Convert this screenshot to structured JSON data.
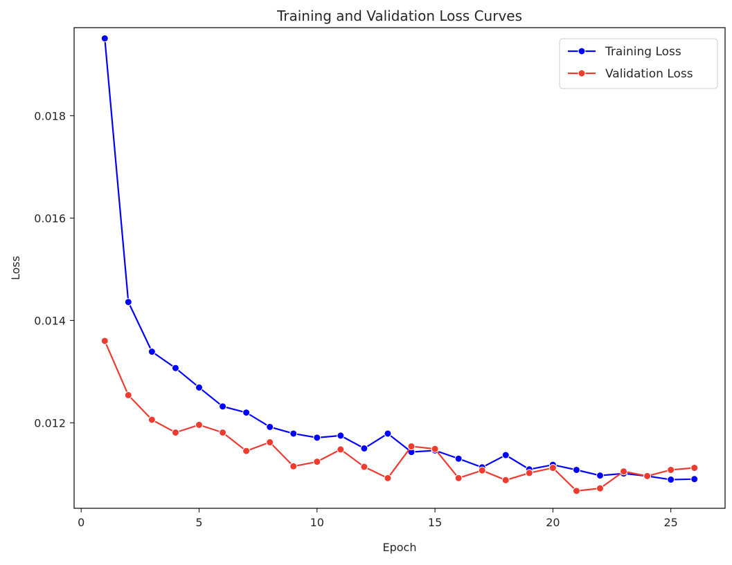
{
  "chart_data": {
    "type": "line",
    "title": "Training and Validation Loss Curves",
    "xlabel": "Epoch",
    "ylabel": "Loss",
    "xlim": [
      -0.3,
      27.3
    ],
    "ylim": [
      0.01033,
      0.01972
    ],
    "xticks": [
      0,
      5,
      10,
      15,
      20,
      25
    ],
    "xtick_labels": [
      "0",
      "5",
      "10",
      "15",
      "20",
      "25"
    ],
    "yticks": [
      0.012,
      0.014,
      0.016,
      0.018
    ],
    "ytick_labels": [
      "0.012",
      "0.014",
      "0.016",
      "0.018"
    ],
    "grid": false,
    "legend_position": "top-right",
    "x": [
      1,
      2,
      3,
      4,
      5,
      6,
      7,
      8,
      9,
      10,
      11,
      12,
      13,
      14,
      15,
      16,
      17,
      18,
      19,
      20,
      21,
      22,
      23,
      24,
      25,
      26
    ],
    "series": [
      {
        "name": "Training Loss",
        "color": "#0000ff",
        "marker": "circle",
        "values": [
          0.01951,
          0.01436,
          0.01339,
          0.01307,
          0.01269,
          0.01232,
          0.0122,
          0.01192,
          0.01179,
          0.01171,
          0.01175,
          0.0115,
          0.01179,
          0.01143,
          0.01146,
          0.0113,
          0.01113,
          0.01137,
          0.01109,
          0.01118,
          0.01108,
          0.01097,
          0.01101,
          0.01096,
          0.01089,
          0.0109
        ]
      },
      {
        "name": "Validation Loss",
        "color": "#ee3b2f",
        "marker": "circle",
        "values": [
          0.0136,
          0.01254,
          0.01206,
          0.01181,
          0.01196,
          0.01181,
          0.01145,
          0.01162,
          0.01115,
          0.01124,
          0.01148,
          0.01114,
          0.01092,
          0.01154,
          0.01149,
          0.01092,
          0.01107,
          0.01088,
          0.01102,
          0.01112,
          0.01067,
          0.01072,
          0.01105,
          0.01096,
          0.01108,
          0.01112
        ]
      }
    ]
  }
}
